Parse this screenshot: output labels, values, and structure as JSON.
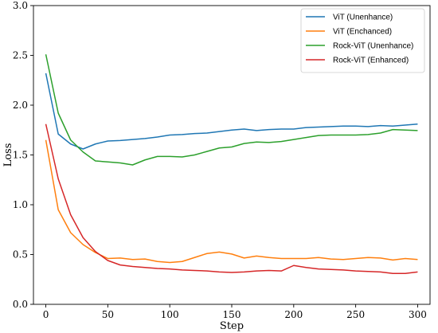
{
  "chart_data": {
    "type": "line",
    "title": "",
    "xlabel": "Step",
    "ylabel": "Loss",
    "xlim": [
      -10,
      310
    ],
    "ylim": [
      0.0,
      3.0
    ],
    "xticks": [
      0,
      50,
      100,
      150,
      200,
      250,
      300
    ],
    "yticks": [
      "0.0",
      "0.5",
      "1.0",
      "1.5",
      "2.0",
      "2.5",
      "3.0"
    ],
    "grid": false,
    "legend_position": "top-right",
    "x": [
      0,
      10,
      20,
      30,
      40,
      50,
      60,
      70,
      80,
      90,
      100,
      110,
      120,
      130,
      140,
      150,
      160,
      170,
      180,
      190,
      200,
      210,
      220,
      230,
      240,
      250,
      260,
      270,
      280,
      290,
      300
    ],
    "series": [
      {
        "name": "ViT (Unenhance)",
        "color": "#1f77b4",
        "values": [
          2.32,
          1.71,
          1.61,
          1.56,
          1.61,
          1.64,
          1.645,
          1.655,
          1.665,
          1.68,
          1.7,
          1.705,
          1.715,
          1.72,
          1.735,
          1.75,
          1.76,
          1.745,
          1.755,
          1.76,
          1.76,
          1.775,
          1.78,
          1.785,
          1.79,
          1.79,
          1.785,
          1.795,
          1.79,
          1.8,
          1.81
        ]
      },
      {
        "name": "ViT (Enchanced)",
        "color": "#ff7f0e",
        "values": [
          1.65,
          0.95,
          0.72,
          0.6,
          0.52,
          0.46,
          0.465,
          0.45,
          0.455,
          0.43,
          0.42,
          0.43,
          0.47,
          0.51,
          0.525,
          0.505,
          0.465,
          0.485,
          0.47,
          0.46,
          0.46,
          0.46,
          0.47,
          0.455,
          0.45,
          0.46,
          0.47,
          0.465,
          0.445,
          0.46,
          0.45
        ]
      },
      {
        "name": "Rock-ViT (Unenhance)",
        "color": "#2ca02c",
        "values": [
          2.51,
          1.92,
          1.65,
          1.53,
          1.44,
          1.43,
          1.42,
          1.4,
          1.45,
          1.485,
          1.485,
          1.48,
          1.5,
          1.535,
          1.57,
          1.58,
          1.615,
          1.63,
          1.625,
          1.635,
          1.655,
          1.675,
          1.695,
          1.7,
          1.7,
          1.7,
          1.705,
          1.72,
          1.755,
          1.75,
          1.745
        ]
      },
      {
        "name": "Rock-ViT (Enhanced)",
        "color": "#d62728",
        "values": [
          1.81,
          1.26,
          0.9,
          0.67,
          0.53,
          0.44,
          0.395,
          0.38,
          0.37,
          0.36,
          0.355,
          0.345,
          0.34,
          0.335,
          0.325,
          0.32,
          0.325,
          0.335,
          0.34,
          0.335,
          0.39,
          0.37,
          0.355,
          0.35,
          0.345,
          0.335,
          0.33,
          0.325,
          0.31,
          0.31,
          0.325
        ]
      }
    ]
  }
}
